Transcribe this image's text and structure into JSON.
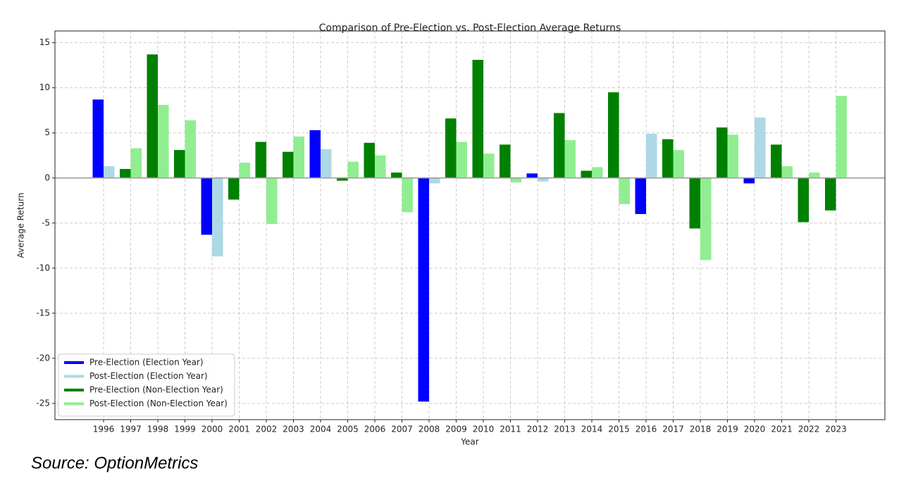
{
  "chart_data": {
    "type": "bar",
    "title": "Comparison of Pre-Election vs. Post-Election Average Returns",
    "x_label": "Year",
    "y_label": "Average Return",
    "categories": [
      "1996",
      "1997",
      "1998",
      "1999",
      "2000",
      "2001",
      "2002",
      "2003",
      "2004",
      "2005",
      "2006",
      "2007",
      "2008",
      "2009",
      "2010",
      "2011",
      "2012",
      "2013",
      "2014",
      "2015",
      "2016",
      "2017",
      "2018",
      "2019",
      "2020",
      "2021",
      "2022",
      "2023"
    ],
    "series": [
      {
        "name": "Pre-Election (Election Year)",
        "color": "#0000ff",
        "values": [
          8.7,
          null,
          null,
          null,
          -6.3,
          null,
          null,
          null,
          5.3,
          null,
          null,
          null,
          -24.8,
          null,
          null,
          null,
          0.5,
          null,
          null,
          null,
          -4.0,
          null,
          null,
          null,
          -0.6,
          null,
          null,
          null
        ]
      },
      {
        "name": "Post-Election (Election Year)",
        "color": "#add8e6",
        "values": [
          1.3,
          null,
          null,
          null,
          -8.7,
          null,
          null,
          null,
          3.2,
          null,
          null,
          null,
          -0.6,
          null,
          null,
          null,
          -0.4,
          null,
          null,
          null,
          4.9,
          null,
          null,
          null,
          6.7,
          null,
          null,
          null
        ]
      },
      {
        "name": "Pre-Election (Non-Election Year)",
        "color": "#008000",
        "values": [
          null,
          1.0,
          13.7,
          3.1,
          null,
          -2.4,
          4.0,
          2.9,
          null,
          -0.3,
          3.9,
          0.6,
          null,
          6.6,
          13.1,
          3.7,
          null,
          7.2,
          0.8,
          9.5,
          null,
          4.3,
          -5.6,
          5.6,
          null,
          3.7,
          -4.9,
          -3.6
        ]
      },
      {
        "name": "Post-Election (Non-Election Year)",
        "color": "#90ee90",
        "values": [
          null,
          3.3,
          8.1,
          6.4,
          null,
          1.7,
          -5.1,
          4.6,
          null,
          1.8,
          2.5,
          -3.8,
          null,
          4.0,
          2.7,
          -0.5,
          null,
          4.2,
          1.2,
          -2.9,
          null,
          3.1,
          -9.1,
          4.8,
          null,
          1.3,
          0.6,
          9.1
        ]
      }
    ],
    "ylim": [
      -26.8,
      16.3
    ],
    "yticks": [
      -25,
      -20,
      -15,
      -10,
      -5,
      0,
      5,
      10,
      15
    ],
    "grid": true,
    "axhline": 0,
    "legend": "lower left"
  },
  "source": "Source: OptionMetrics"
}
